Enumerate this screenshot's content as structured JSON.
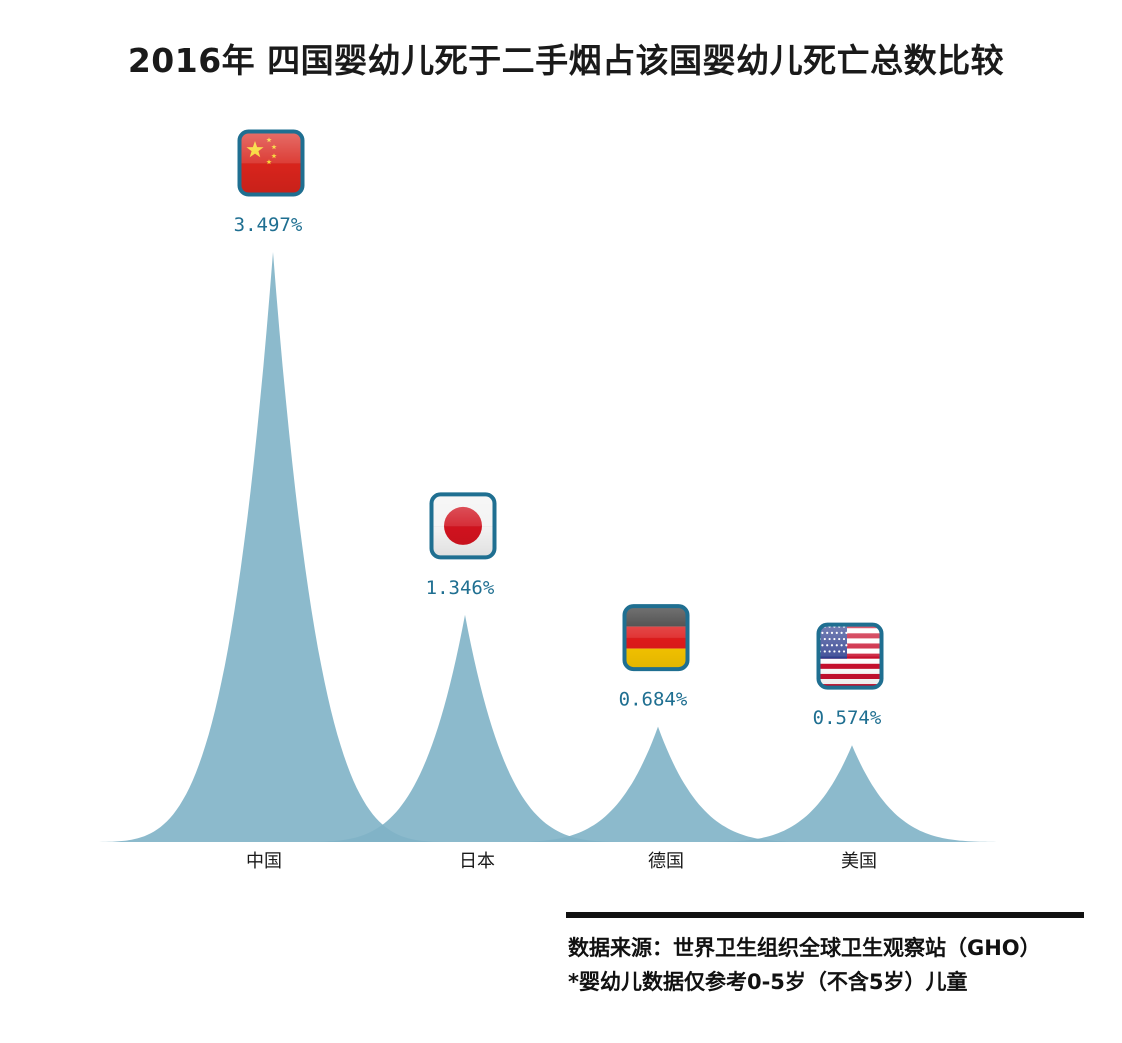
{
  "title": "2016年 四国婴幼儿死于二手烟占该国婴幼儿死亡总数比较",
  "chart_data": {
    "type": "area",
    "title": "2016年 四国婴幼儿死于二手烟占该国婴幼儿死亡总数比较",
    "categories": [
      "中国",
      "日本",
      "德国",
      "美国"
    ],
    "values": [
      3.497,
      1.346,
      0.684,
      0.574
    ],
    "value_labels": [
      "3.497%",
      "1.346%",
      "0.684%",
      "0.574%"
    ],
    "unit": "%",
    "grid": false,
    "legend": "none",
    "peak_color": "#7fb3c6",
    "flags": [
      "china-flag-icon",
      "japan-flag-icon",
      "germany-flag-icon",
      "usa-flag-icon"
    ]
  },
  "source": "数据来源：世界卫生组织全球卫生观察站（GHO）",
  "footnote": "*婴幼儿数据仅参考0-5岁（不含5岁）儿童"
}
